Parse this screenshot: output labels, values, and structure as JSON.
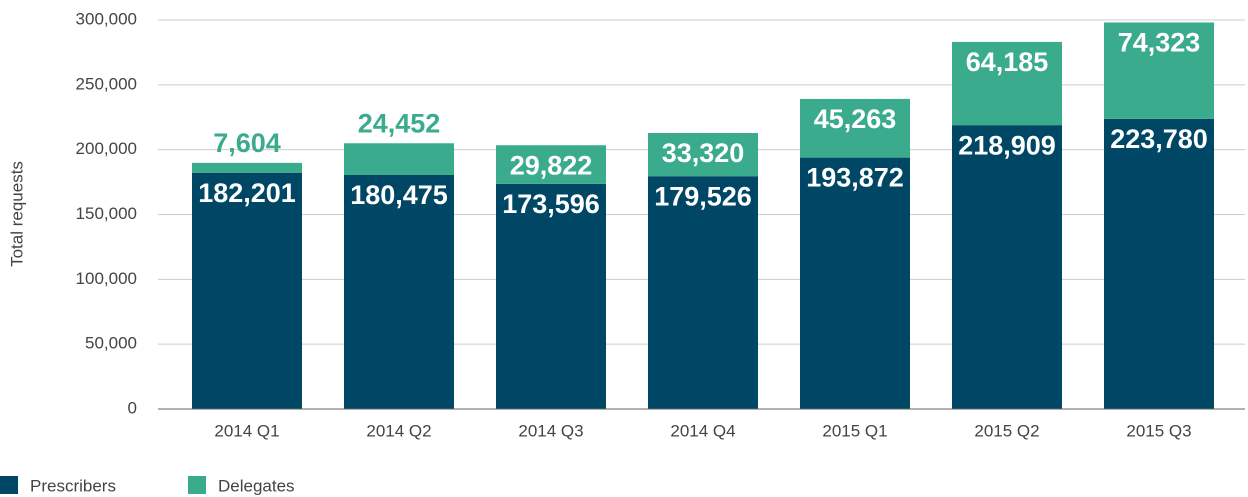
{
  "chart_data": {
    "type": "stacked_bar",
    "y_label": "Total requests",
    "categories": [
      "2014 Q1",
      "2014 Q2",
      "2014 Q3",
      "2014 Q4",
      "2015 Q1",
      "2015 Q2",
      "2015 Q3"
    ],
    "series": [
      {
        "name": "Prescribers",
        "color": "#004766",
        "values": [
          182201,
          180475,
          173596,
          179526,
          193872,
          218909,
          223780
        ],
        "value_labels": [
          "182,201",
          "180,475",
          "173,596",
          "179,526",
          "193,872",
          "218,909",
          "223,780"
        ]
      },
      {
        "name": "Delegates",
        "color": "#3aab8c",
        "values": [
          7604,
          24452,
          29822,
          33320,
          45263,
          64185,
          74323
        ],
        "value_labels": [
          "7,604",
          "24,452",
          "29,822",
          "33,320",
          "45,263",
          "64,185",
          "74,323"
        ]
      }
    ],
    "ylim": [
      0,
      300000
    ],
    "yticks": [
      0,
      {
        "value": 50000,
        "label": "50,000"
      },
      {
        "value": 100000,
        "label": "100,000"
      },
      {
        "value": 150000,
        "label": "150,000"
      },
      {
        "value": 200000,
        "label": "200,000"
      },
      {
        "value": 250000,
        "label": "250,000"
      },
      {
        "value": 300000,
        "label": "300,000"
      }
    ],
    "grid": true,
    "legend": "bottom-left"
  }
}
